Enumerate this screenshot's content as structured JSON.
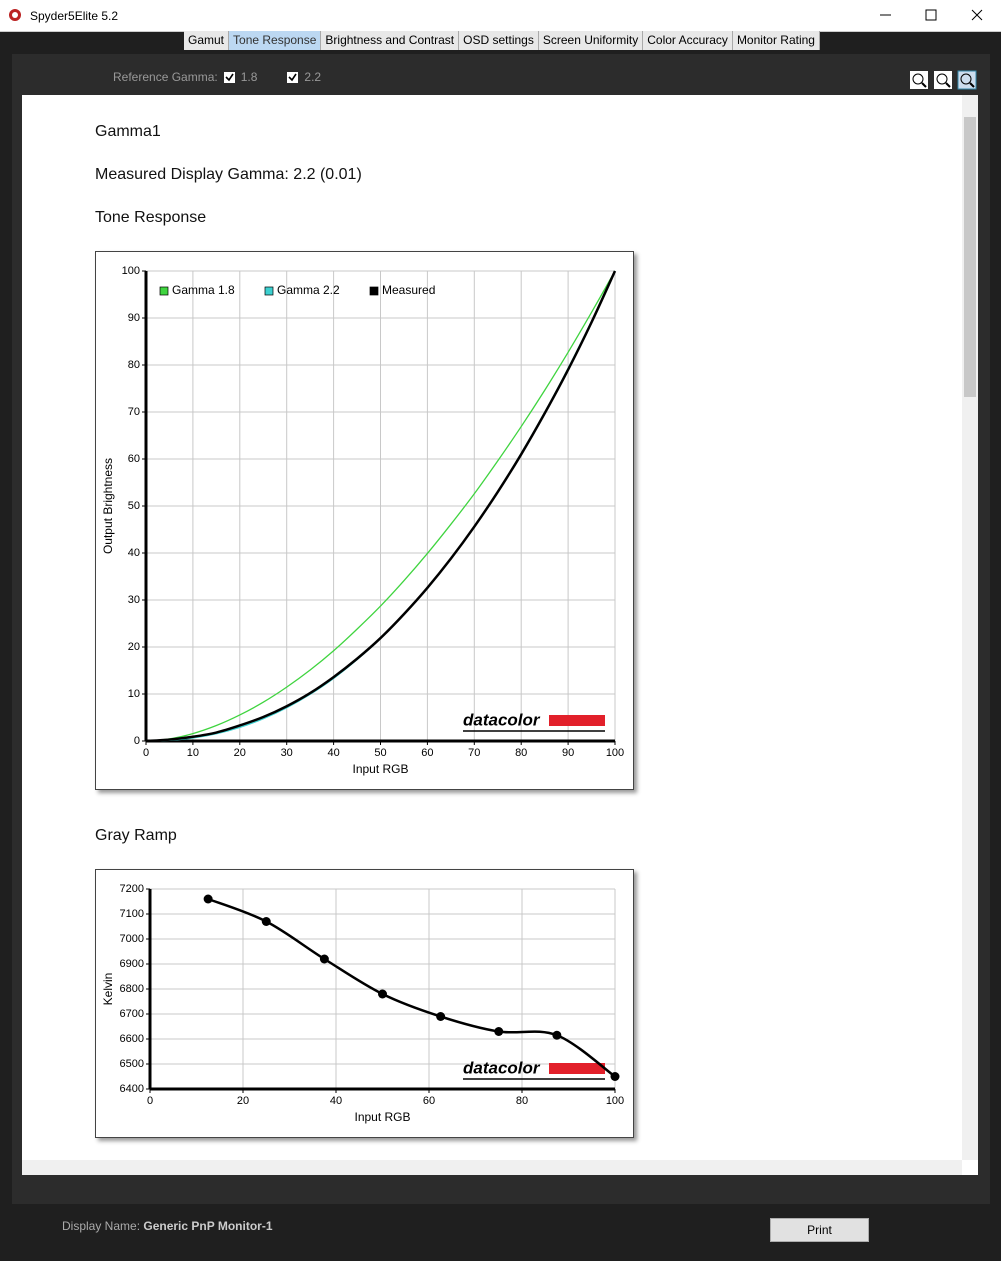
{
  "window": {
    "title": "Spyder5Elite 5.2"
  },
  "tabs": [
    "Gamut",
    "Tone Response",
    "Brightness and Contrast",
    "OSD settings",
    "Screen Uniformity",
    "Color Accuracy",
    "Monitor Rating"
  ],
  "toolbar": {
    "label": "Reference Gamma:",
    "options": [
      "1.8",
      "2.2"
    ]
  },
  "report": {
    "name": "Gamma1",
    "gamma": "Measured Display Gamma: 2.2 (0.01)",
    "sections": [
      "Tone Response",
      "Gray Ramp"
    ]
  },
  "footer": {
    "label": "Display Name:",
    "value": "Generic PnP Monitor-1",
    "button": "Print"
  },
  "chart_data": [
    {
      "type": "line",
      "xlabel": "Input RGB",
      "ylabel": "Output Brightness",
      "watermark": "datacolor",
      "x": [
        0,
        5,
        10,
        15,
        20,
        25,
        30,
        35,
        40,
        45,
        50,
        55,
        60,
        65,
        70,
        75,
        80,
        85,
        90,
        95,
        100
      ],
      "series": [
        {
          "name": "Gamma 1.8",
          "color": "#3fd43f",
          "values": [
            0,
            0.46,
            1.58,
            3.29,
            5.54,
            8.25,
            11.46,
            15.1,
            19.2,
            23.8,
            28.7,
            34.1,
            39.9,
            46.1,
            52.6,
            59.6,
            66.9,
            74.6,
            82.7,
            91.2,
            100
          ]
        },
        {
          "name": "Gamma 2.2",
          "color": "#3cd0d0",
          "values": [
            0,
            0.14,
            0.63,
            1.54,
            2.9,
            4.74,
            7.07,
            9.93,
            13.3,
            17.3,
            21.8,
            26.9,
            32.5,
            38.8,
            45.6,
            53.1,
            61.2,
            69.9,
            79.3,
            89.3,
            100
          ]
        },
        {
          "name": "Measured",
          "color": "#000000",
          "values": [
            0,
            0.3,
            0.9,
            1.8,
            3.3,
            5.1,
            7.4,
            10.2,
            13.6,
            17.5,
            21.9,
            27.0,
            32.6,
            38.8,
            45.6,
            53.0,
            61.0,
            69.7,
            79.0,
            89.1,
            100
          ]
        }
      ],
      "xlim": [
        0,
        100
      ],
      "xticks": [
        0,
        10,
        20,
        30,
        40,
        50,
        60,
        70,
        80,
        90,
        100
      ],
      "ylim": [
        0,
        100
      ],
      "yticks": [
        0,
        10,
        20,
        30,
        40,
        50,
        60,
        70,
        80,
        90,
        100
      ],
      "grid": true,
      "legend": "upper-left"
    },
    {
      "type": "line",
      "xlabel": "Input RGB",
      "ylabel": "Kelvin",
      "watermark": "datacolor",
      "x": [
        12.5,
        25,
        37.5,
        50,
        62.5,
        75,
        87.5,
        100
      ],
      "values": [
        7160,
        7070,
        6920,
        6780,
        6690,
        6630,
        6615,
        6450
      ],
      "color": "#000000",
      "markers": true,
      "xlim": [
        0,
        100
      ],
      "xticks": [
        0,
        20,
        40,
        60,
        80,
        100
      ],
      "ylim": [
        6400,
        7200
      ],
      "yticks": [
        6400,
        6500,
        6600,
        6700,
        6800,
        6900,
        7000,
        7100,
        7200
      ],
      "grid": true
    }
  ]
}
